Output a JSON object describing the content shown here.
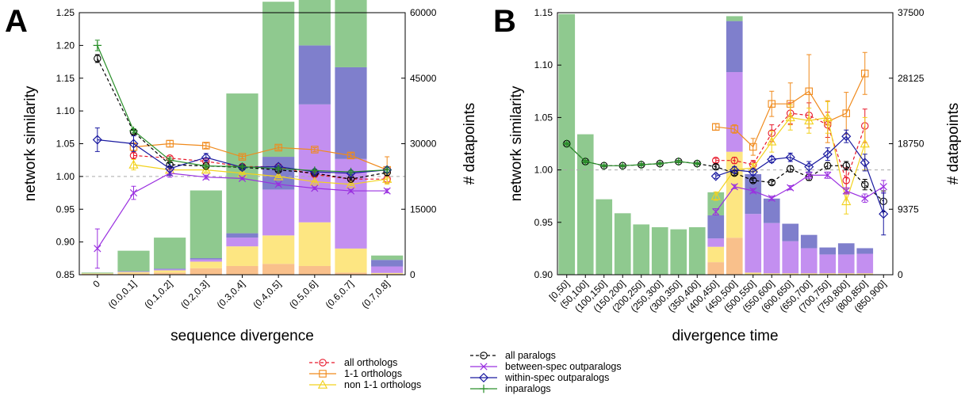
{
  "figure": {
    "panels": [
      "A",
      "B"
    ]
  },
  "colors": {
    "inparalogs": "#8fc98f",
    "within_spec_outparalogs": "#7f7fcc",
    "between_spec_outparalogs": "#c38ff0",
    "non11_orthologs": "#fde682",
    "orthologs_11": "#f9c08b",
    "all_orthologs_line": "#e8182a",
    "orthologs_11_line": "#f08a1c",
    "non11_orthologs_line": "#f2d21e",
    "all_paralogs_line": "#000000",
    "between_spec_line": "#9a30e0",
    "within_spec_line": "#1a1aa0",
    "inparalogs_line": "#2a8f2a"
  },
  "legend": [
    {
      "key": "all_orthologs",
      "label": "all orthologs",
      "marker": "circle",
      "dash": true,
      "color": "#e8182a"
    },
    {
      "key": "orthologs_11",
      "label": "1-1 orthologs",
      "marker": "square",
      "dash": false,
      "color": "#f08a1c"
    },
    {
      "key": "non11_orthologs",
      "label": "non 1-1 orthologs",
      "marker": "triangle",
      "dash": false,
      "color": "#f2d21e"
    },
    {
      "key": "all_paralogs",
      "label": "all paralogs",
      "marker": "circle",
      "dash": true,
      "color": "#000000"
    },
    {
      "key": "between_spec",
      "label": "between-spec outparalogs",
      "marker": "x",
      "dash": false,
      "color": "#9a30e0"
    },
    {
      "key": "within_spec",
      "label": "within-spec outparalogs",
      "marker": "diamond",
      "dash": false,
      "color": "#1a1aa0"
    },
    {
      "key": "inparalogs",
      "label": "inparalogs",
      "marker": "plus",
      "dash": false,
      "color": "#2a8f2a"
    }
  ],
  "chart_data": [
    {
      "panel": "A",
      "type": "bar+line",
      "xlabel": "sequence divergence",
      "ylabel": "network similarity",
      "y2label": "# datapoints",
      "categories": [
        "0",
        "(0.0,0.1]",
        "(0.1,0.2]",
        "(0.2,0.3]",
        "(0.3,0.4]",
        "(0.4,0.5]",
        "(0.5,0.6]",
        "(0.6,0.7]",
        "(0.7,0.8]"
      ],
      "ylim": [
        0.85,
        1.25
      ],
      "yticks": [
        "0.85",
        "0.90",
        "0.95",
        "1.00",
        "1.05",
        "1.10",
        "1.15",
        "1.20",
        "1.25"
      ],
      "y2lim": [
        0,
        60000
      ],
      "y2ticks": [
        "0",
        "15000",
        "30000",
        "45000",
        "60000"
      ],
      "reference_line": 1.0,
      "bars": {
        "stack_order": [
          "orthologs_11",
          "non11_orthologs",
          "between_spec",
          "within_spec",
          "inparalogs"
        ],
        "orthologs_11": [
          200,
          300,
          500,
          1500,
          2000,
          2500,
          2000,
          500,
          200
        ],
        "non11_orthologs": [
          100,
          300,
          500,
          1500,
          4500,
          6500,
          10000,
          5500,
          200
        ],
        "between_spec": [
          0,
          100,
          200,
          500,
          2000,
          10500,
          27000,
          20500,
          1500
        ],
        "within_spec": [
          0,
          100,
          200,
          300,
          1000,
          7500,
          13500,
          21000,
          1500
        ],
        "inparalogs": [
          200,
          4700,
          7100,
          15500,
          32000,
          35500,
          48500,
          17500,
          1000
        ]
      },
      "series": [
        {
          "key": "all_orthologs",
          "values": [
            null,
            1.032,
            1.028,
            1.023,
            1.015,
            1.015,
            1.003,
            0.996,
            0.996
          ],
          "err": [
            null,
            0.004,
            0.003,
            0.002,
            0.002,
            0.002,
            0.002,
            0.002,
            0.006
          ]
        },
        {
          "key": "orthologs_11",
          "values": [
            null,
            1.045,
            1.05,
            1.047,
            1.03,
            1.044,
            1.041,
            1.032,
            1.01
          ],
          "err": [
            null,
            0.006,
            0.005,
            0.004,
            0.003,
            0.003,
            0.003,
            0.004,
            0.02
          ]
        },
        {
          "key": "non11_orthologs",
          "values": [
            null,
            1.018,
            1.01,
            1.01,
            1.005,
            1.0,
            0.992,
            0.988,
            0.996
          ],
          "err": [
            null,
            0.008,
            0.005,
            0.003,
            0.002,
            0.002,
            0.002,
            0.002,
            0.008
          ]
        },
        {
          "key": "all_paralogs",
          "values": [
            1.18,
            1.068,
            1.018,
            1.016,
            1.014,
            1.01,
            1.005,
            0.996,
            1.006
          ],
          "err": [
            0.006,
            0.003,
            0.003,
            0.002,
            0.002,
            0.002,
            0.002,
            0.002,
            0.004
          ]
        },
        {
          "key": "between_spec",
          "values": [
            0.89,
            0.975,
            1.005,
            0.999,
            0.997,
            0.988,
            0.982,
            0.978,
            0.978
          ],
          "err": [
            0.03,
            0.01,
            0.006,
            0.003,
            0.002,
            0.002,
            0.002,
            0.002,
            0.003
          ]
        },
        {
          "key": "within_spec",
          "values": [
            1.056,
            1.05,
            1.012,
            1.029,
            1.014,
            1.015,
            1.007,
            1.005,
            1.01
          ],
          "err": [
            0.018,
            0.012,
            0.01,
            0.006,
            0.003,
            0.002,
            0.002,
            0.002,
            0.004
          ]
        },
        {
          "key": "inparalogs",
          "values": [
            1.2,
            1.07,
            1.025,
            1.016,
            1.015,
            1.012,
            1.009,
            1.007,
            1.01
          ],
          "err": [
            0.008,
            0.003,
            0.003,
            0.002,
            0.002,
            0.002,
            0.002,
            0.002,
            0.003
          ]
        }
      ]
    },
    {
      "panel": "B",
      "type": "bar+line",
      "xlabel": "divergence time",
      "ylabel": "network similarity",
      "y2label": "# datapoints",
      "categories": [
        "[0,50]",
        "(50,100]",
        "(100,150]",
        "(150,200]",
        "(200,250]",
        "(250,300]",
        "(300,350]",
        "(350,400]",
        "(400,450]",
        "(450,500]",
        "(500,550]",
        "(550,600]",
        "(600,650]",
        "(650,700]",
        "(700,750]",
        "(750,800]",
        "(800,850]",
        "(850,900]"
      ],
      "ylim": [
        0.9,
        1.15
      ],
      "yticks": [
        "0.90",
        "0.95",
        "1.00",
        "1.05",
        "1.10",
        "1.15"
      ],
      "y2lim": [
        0,
        37500
      ],
      "y2ticks": [
        "0",
        "9375",
        "18750",
        "28125",
        "37500"
      ],
      "reference_line": 1.0,
      "bars": {
        "stack_order": [
          "orthologs_11",
          "non11_orthologs",
          "between_spec",
          "within_spec",
          "inparalogs"
        ],
        "orthologs_11": [
          0,
          0,
          0,
          0,
          0,
          0,
          0,
          0,
          1800,
          5300,
          0,
          0,
          0,
          0,
          0,
          0,
          0,
          0
        ],
        "non11_orthologs": [
          0,
          0,
          0,
          0,
          0,
          0,
          0,
          0,
          2200,
          12300,
          300,
          200,
          200,
          200,
          200,
          200,
          200,
          0
        ],
        "between_spec": [
          0,
          0,
          0,
          0,
          0,
          0,
          0,
          0,
          1200,
          11400,
          8400,
          7200,
          4600,
          3600,
          2700,
          2700,
          2800,
          0
        ],
        "within_spec": [
          0,
          0,
          0,
          0,
          0,
          0,
          0,
          0,
          3300,
          7300,
          5700,
          3500,
          2500,
          1900,
          1000,
          1600,
          800,
          0
        ],
        "inparalogs": [
          37300,
          20100,
          10800,
          8800,
          7200,
          6800,
          6500,
          6800,
          3300,
          700,
          0,
          0,
          0,
          0,
          0,
          0,
          0,
          0
        ]
      },
      "series": [
        {
          "key": "all_orthologs",
          "values": [
            null,
            null,
            null,
            null,
            null,
            null,
            null,
            null,
            1.009,
            1.009,
            1.005,
            1.035,
            1.054,
            1.052,
            1.043,
            0.99,
            1.042,
            null
          ],
          "err": [
            null,
            null,
            null,
            null,
            null,
            null,
            null,
            null,
            0.002,
            0.003,
            0.004,
            0.008,
            0.01,
            0.012,
            0.012,
            0.012,
            0.016,
            null
          ]
        },
        {
          "key": "orthologs_11",
          "values": [
            null,
            null,
            null,
            null,
            null,
            null,
            null,
            null,
            1.041,
            1.039,
            1.022,
            1.063,
            1.063,
            1.075,
            1.046,
            1.054,
            1.092,
            null
          ],
          "err": [
            null,
            null,
            null,
            null,
            null,
            null,
            null,
            null,
            0.003,
            0.004,
            0.008,
            0.012,
            0.02,
            0.035,
            0.02,
            0.02,
            0.02,
            null
          ]
        },
        {
          "key": "non11_orthologs",
          "values": [
            null,
            null,
            null,
            null,
            null,
            null,
            null,
            null,
            0.975,
            1.0,
            1.002,
            1.027,
            1.05,
            1.047,
            1.05,
            0.97,
            1.025,
            null
          ],
          "err": [
            null,
            null,
            null,
            null,
            null,
            null,
            null,
            null,
            0.004,
            0.003,
            0.004,
            0.01,
            0.012,
            0.012,
            0.015,
            0.012,
            0.025,
            null
          ]
        },
        {
          "key": "all_paralogs",
          "values": [
            1.025,
            1.008,
            1.004,
            1.004,
            1.005,
            1.006,
            1.008,
            1.006,
            1.003,
            0.997,
            0.99,
            0.988,
            1.001,
            0.993,
            1.004,
            1.004,
            0.986,
            0.97
          ],
          "err": [
            0.001,
            0.001,
            0.001,
            0.001,
            0.001,
            0.001,
            0.001,
            0.001,
            0.002,
            0.002,
            0.002,
            0.002,
            0.003,
            0.003,
            0.003,
            0.004,
            0.005,
            0.01
          ]
        },
        {
          "key": "between_spec",
          "values": [
            null,
            null,
            null,
            null,
            null,
            null,
            null,
            null,
            0.96,
            0.984,
            0.98,
            0.973,
            0.983,
            0.995,
            0.995,
            0.98,
            0.973,
            0.984
          ],
          "err": [
            null,
            null,
            null,
            null,
            null,
            null,
            null,
            null,
            0.003,
            0.002,
            0.002,
            0.002,
            0.002,
            0.003,
            0.003,
            0.003,
            0.004,
            0.006
          ]
        },
        {
          "key": "within_spec",
          "values": [
            null,
            null,
            null,
            null,
            null,
            null,
            null,
            null,
            0.994,
            1.0,
            0.998,
            1.01,
            1.012,
            1.003,
            1.015,
            1.032,
            1.007,
            0.958
          ],
          "err": [
            null,
            null,
            null,
            null,
            null,
            null,
            null,
            null,
            0.002,
            0.003,
            0.003,
            0.003,
            0.004,
            0.005,
            0.006,
            0.006,
            0.008,
            0.02
          ]
        },
        {
          "key": "inparalogs",
          "values": [
            1.025,
            1.008,
            1.004,
            1.004,
            1.005,
            1.006,
            1.008,
            1.006,
            null,
            null,
            null,
            null,
            null,
            null,
            null,
            null,
            null,
            null
          ],
          "err": [
            0.001,
            0.001,
            0.001,
            0.001,
            0.001,
            0.001,
            0.001,
            0.001,
            null,
            null,
            null,
            null,
            null,
            null,
            null,
            null,
            null,
            null
          ]
        }
      ]
    }
  ]
}
